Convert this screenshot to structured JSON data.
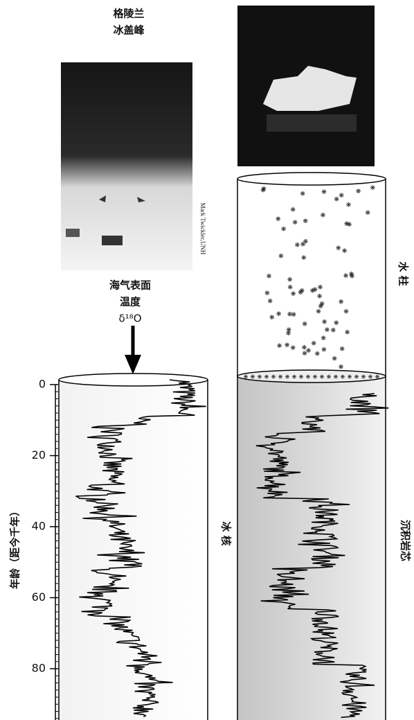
{
  "header": {
    "title_lines": [
      "格陵兰",
      "冰盖峰"
    ]
  },
  "photo_credit": "Mark Twickler,UNH",
  "measurement": {
    "lines": [
      "海气表面",
      "温度",
      "δ¹⁸O"
    ]
  },
  "labels": {
    "water_column": "水 柱",
    "ice_core": "冰 核",
    "sediment_core": "沉积岩芯"
  },
  "axis": {
    "title": "年龄（距今千年）",
    "ticks": [
      0,
      20,
      40,
      60,
      80
    ]
  }
}
